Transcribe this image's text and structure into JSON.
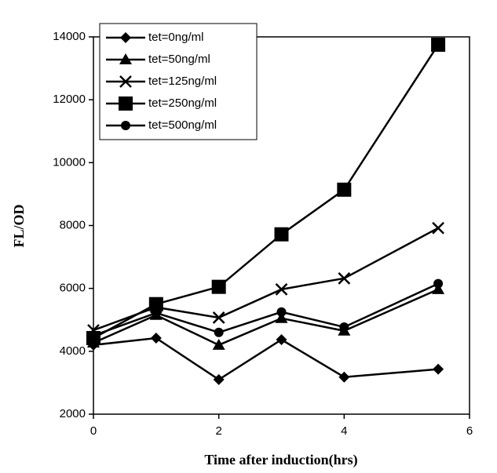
{
  "chart_data": {
    "type": "line",
    "x_label": "Time after induction(hrs)",
    "y_label": "FL/OD",
    "x": [
      0,
      1,
      2,
      3,
      4,
      5.5
    ],
    "series": [
      {
        "name": "tet=0ng/ml",
        "marker": "diamond",
        "color": "#000000",
        "values": [
          4200,
          4420,
          3100,
          4370,
          3180,
          3430
        ]
      },
      {
        "name": "tet=50ng/ml",
        "marker": "triangle",
        "color": "#000000",
        "values": [
          4270,
          5150,
          4200,
          5050,
          4650,
          5970
        ]
      },
      {
        "name": "tet=125ng/ml",
        "marker": "x",
        "color": "#000000",
        "values": [
          4670,
          5400,
          5070,
          5970,
          6320,
          7920
        ]
      },
      {
        "name": "tet=250ng/ml",
        "marker": "square",
        "color": "#000000",
        "values": [
          4420,
          5500,
          6050,
          7720,
          9140,
          13750
        ]
      },
      {
        "name": "tet=500ng/ml",
        "marker": "circle",
        "color": "#000000",
        "values": [
          4500,
          5220,
          4600,
          5250,
          4770,
          6150
        ]
      }
    ],
    "xlim": [
      0,
      6
    ],
    "xticks": [
      0,
      2,
      4,
      6
    ],
    "ylim": [
      2000,
      14000
    ],
    "yticks": [
      2000,
      4000,
      6000,
      8000,
      10000,
      12000,
      14000
    ],
    "legend": "upper left"
  }
}
